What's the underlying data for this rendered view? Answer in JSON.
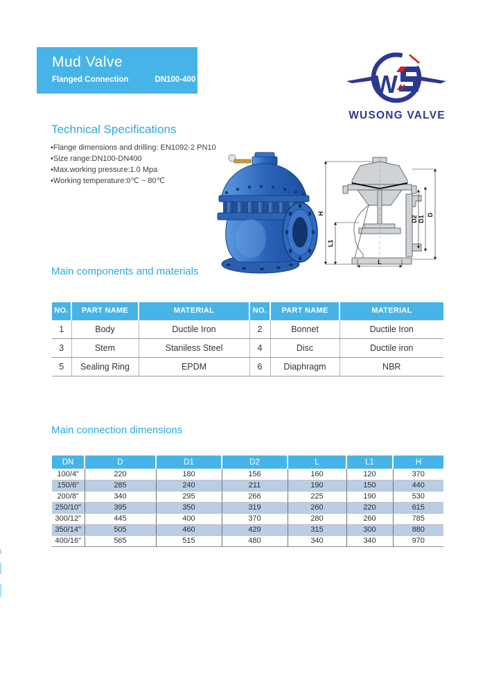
{
  "header": {
    "title": "Mud Valve",
    "subtitle": "Flanged Connection",
    "size_range": "DN100-400"
  },
  "logo": {
    "company": "WUSONG VALVE"
  },
  "tech_specs": {
    "heading": "Technical Specifications",
    "bullets": [
      "•Flange dimensions and drilling: EN1092-2 PN10",
      "•Size range:DN100-DN400",
      "•Max.working pressure:1.0 Mpa",
      "•Working temperature:0℃ ~ 80℃"
    ]
  },
  "components": {
    "heading": "Main components and materials",
    "headers": [
      "NO.",
      "PART NAME",
      "MATERIAL",
      "NO.",
      "PART NAME",
      "MATERIAL"
    ],
    "rows": [
      [
        "1",
        "Body",
        "Ductile Iron",
        "2",
        "Bonnet",
        "Ductile Iron"
      ],
      [
        "3",
        "Stem",
        "Staniless Steel",
        "4",
        "Disc",
        "Ductile iron"
      ],
      [
        "5",
        "Sealing Ring",
        "EPDM",
        "6",
        "Diaphragm",
        "NBR"
      ]
    ]
  },
  "dimensions": {
    "heading": "Main connection dimensions",
    "headers": [
      "DN",
      "D",
      "D1",
      "D2",
      "L",
      "L1",
      "H"
    ],
    "rows": [
      [
        "100/4\"",
        "220",
        "180",
        "156",
        "160",
        "120",
        "370"
      ],
      [
        "150/6\"",
        "285",
        "240",
        "211",
        "190",
        "150",
        "440"
      ],
      [
        "200/8\"",
        "340",
        "295",
        "266",
        "225",
        "190",
        "530"
      ],
      [
        "250/10\"",
        "395",
        "350",
        "319",
        "260",
        "220",
        "615"
      ],
      [
        "300/12\"",
        "445",
        "400",
        "370",
        "280",
        "260",
        "785"
      ],
      [
        "350/14''",
        "505",
        "460",
        "429",
        "315",
        "300",
        "880"
      ],
      [
        "400/16\"",
        "565",
        "515",
        "480",
        "340",
        "340",
        "970"
      ]
    ]
  },
  "drawing": {
    "labels": {
      "H": "H",
      "L1": "L1",
      "L": "L",
      "D2": "D2",
      "D1": "D1",
      "D": "D"
    }
  },
  "colors": {
    "accent_blue": "#47b4e8",
    "heading_blue": "#2aa9e1",
    "table_alt_row": "#b9cee4",
    "logo_navy": "#2b3990",
    "logo_red": "#d42027",
    "valve_blue": "#2e6abc"
  }
}
